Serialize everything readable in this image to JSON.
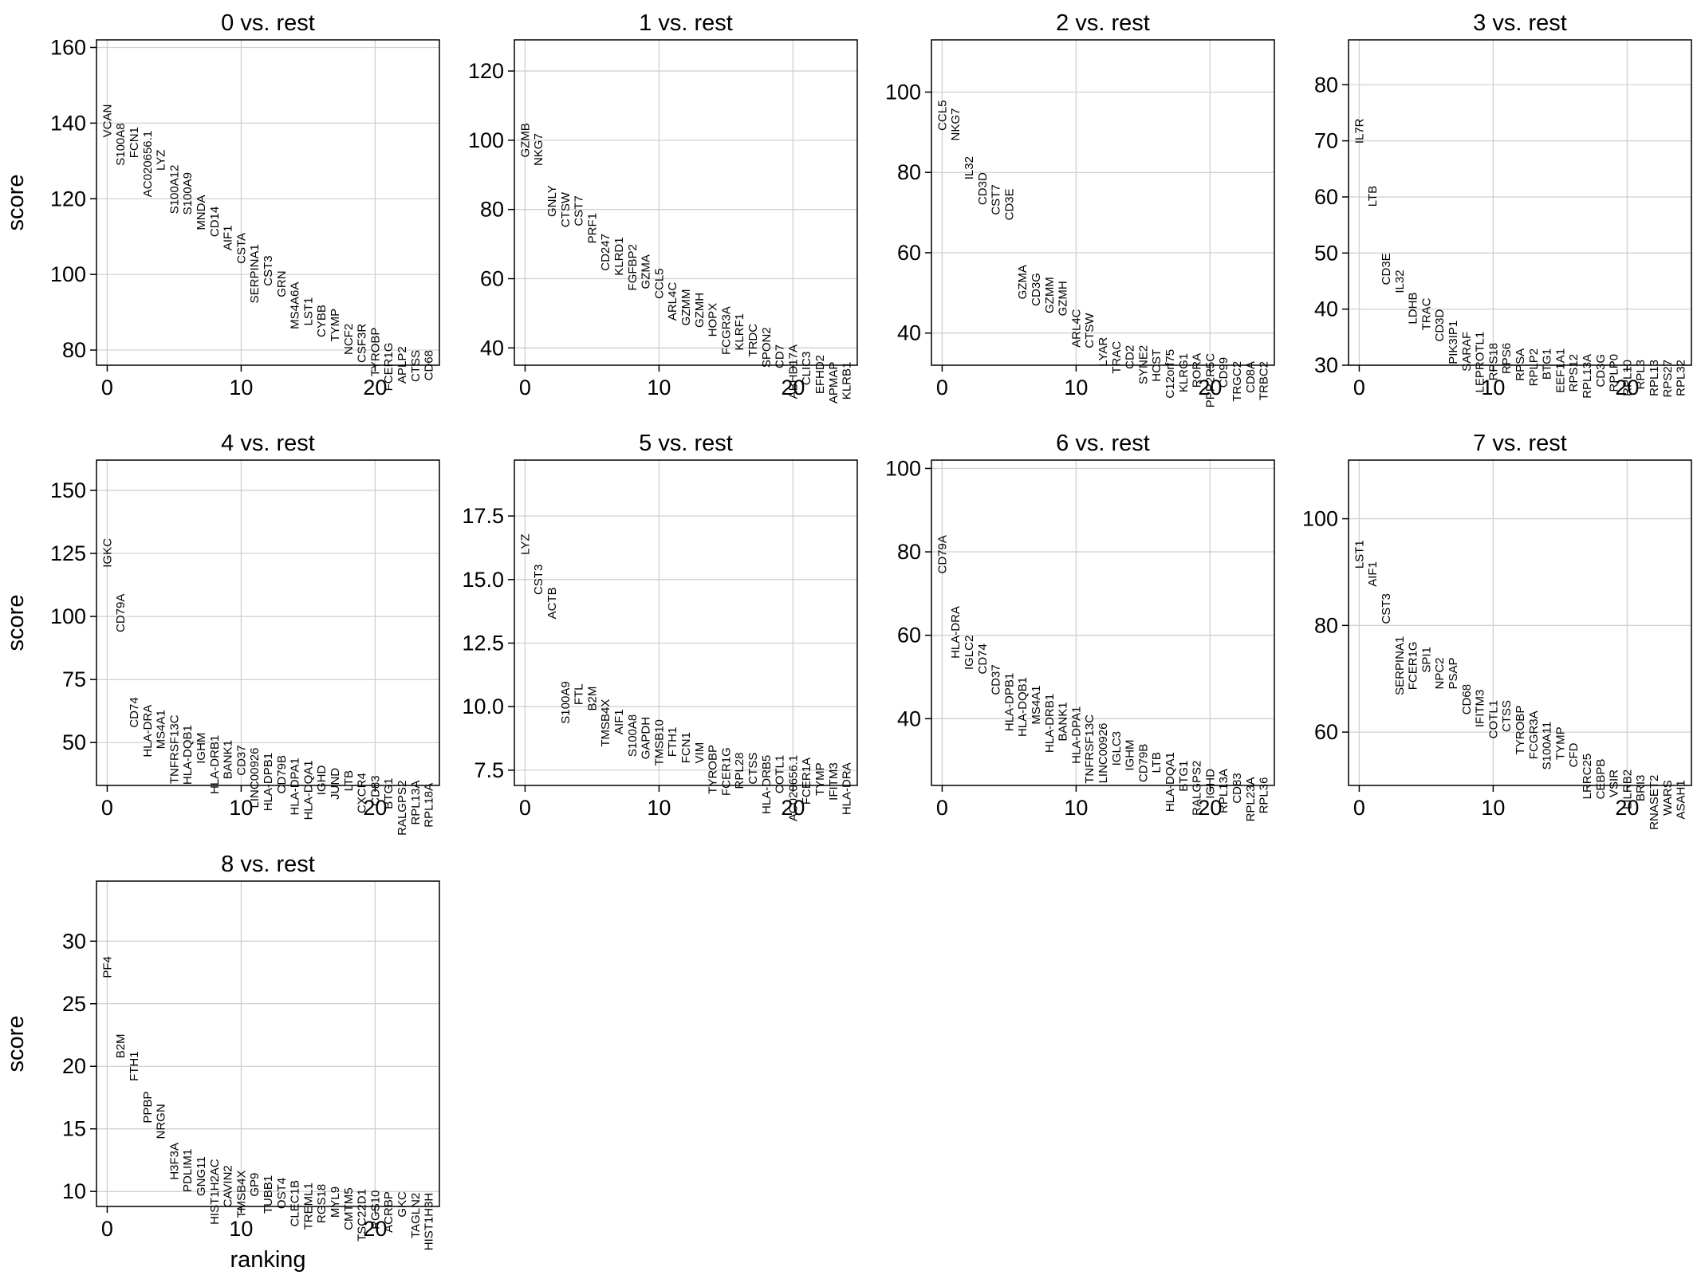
{
  "chart_data": [
    {
      "type": "scatter",
      "title": "0 vs. rest",
      "ylabel": "score",
      "xlabel": "",
      "xlim": [
        -0.8,
        24.8
      ],
      "ylim": [
        76,
        162
      ],
      "xticks": [
        "0",
        "10",
        "20"
      ],
      "yticks": [
        "80",
        "100",
        "120",
        "140",
        "160"
      ],
      "grid": true,
      "genes": [
        "VCAN",
        "S100A8",
        "FCN1",
        "AC020656.1",
        "LYZ",
        "S100A12",
        "S100A9",
        "MNDA",
        "CD14",
        "AIF1",
        "CSTA",
        "SERPINA1",
        "CST3",
        "GRN",
        "MS4A6A",
        "LST1",
        "CYBB",
        "TYMP",
        "NCF2",
        "CSF3R",
        "TYROBP",
        "FCER1G",
        "APLP2",
        "CTSS",
        "CD68"
      ],
      "scores": [
        145,
        140,
        139,
        138,
        133,
        129,
        127,
        121,
        118,
        113,
        111,
        108,
        105,
        101,
        98,
        94,
        92,
        91,
        87,
        87,
        86,
        82,
        81,
        80,
        80
      ]
    },
    {
      "type": "scatter",
      "title": "1 vs. rest",
      "ylabel": "",
      "xlabel": "",
      "xlim": [
        -0.8,
        24.8
      ],
      "ylim": [
        35,
        129
      ],
      "xticks": [
        "0",
        "10",
        "20"
      ],
      "yticks": [
        "40",
        "60",
        "80",
        "100",
        "120"
      ],
      "grid": true,
      "genes": [
        "GZMB",
        "NKG7",
        "GNLY",
        "CTSW",
        "CST7",
        "PRF1",
        "CD247",
        "KLRD1",
        "FGFBP2",
        "GZMA",
        "CCL5",
        "ARL4C",
        "GZMM",
        "GZMH",
        "HOPX",
        "FCGR3A",
        "KLRF1",
        "TRDC",
        "SPON2",
        "CD7",
        "ABHD17A",
        "CLIC3",
        "EFHD2",
        "APMAP",
        "KLRB1"
      ],
      "scores": [
        105,
        102,
        87,
        85,
        84,
        79,
        73,
        72,
        70,
        67,
        63,
        59,
        57,
        56,
        53,
        52,
        50,
        47,
        46,
        41,
        41,
        39,
        38,
        36,
        36
      ]
    },
    {
      "type": "scatter",
      "title": "2 vs. rest",
      "ylabel": "",
      "xlabel": "",
      "xlim": [
        -0.8,
        24.8
      ],
      "ylim": [
        32,
        113
      ],
      "xticks": [
        "0",
        "10",
        "20"
      ],
      "yticks": [
        "40",
        "60",
        "80",
        "100"
      ],
      "grid": true,
      "genes": [
        "CCL5",
        "NKG7",
        "IL32",
        "CD3D",
        "CST7",
        "CD3E",
        "GZMA",
        "CD3G",
        "GZMM",
        "GZMH",
        "ARL4C",
        "CTSW",
        "LYAR",
        "TRAC",
        "CD2",
        "SYNE2",
        "HCST",
        "C12orf75",
        "KLRG1",
        "RORA",
        "PPP2R5C",
        "CD99",
        "TRGC2",
        "CD8A",
        "TRBC2"
      ],
      "scores": [
        98,
        96,
        84,
        80,
        77,
        76,
        57,
        55,
        54,
        53,
        46,
        45,
        39,
        38,
        37,
        37,
        36,
        36,
        35,
        35,
        35,
        34,
        33,
        33,
        33
      ]
    },
    {
      "type": "scatter",
      "title": "3 vs. rest",
      "ylabel": "",
      "xlabel": "",
      "xlim": [
        -0.8,
        24.8
      ],
      "ylim": [
        30,
        88
      ],
      "xticks": [
        "0",
        "10",
        "20"
      ],
      "yticks": [
        "30",
        "40",
        "50",
        "60",
        "70",
        "80"
      ],
      "grid": true,
      "genes": [
        "IL7R",
        "LTB",
        "CD3E",
        "IL32",
        "LDHB",
        "TRAC",
        "CD3D",
        "PIK3IP1",
        "SARAF",
        "LEPROTL1",
        "RPS18",
        "RPS6",
        "RPSA",
        "RPLP2",
        "BTG1",
        "EEF1A1",
        "RPS12",
        "RPL13A",
        "CD3G",
        "RPLP0",
        "RPL10",
        "RPL3",
        "RPL13",
        "RPS27",
        "RPL32"
      ],
      "scores": [
        74,
        62,
        50,
        47,
        43,
        42,
        40,
        38,
        36,
        36,
        34,
        34,
        33,
        33,
        33,
        33,
        32,
        32,
        32,
        32,
        31,
        31,
        31,
        31,
        31
      ]
    },
    {
      "type": "scatter",
      "title": "4 vs. rest",
      "ylabel": "score",
      "xlabel": "",
      "xlim": [
        -0.8,
        24.8
      ],
      "ylim": [
        33,
        162
      ],
      "xticks": [
        "0",
        "10",
        "20"
      ],
      "yticks": [
        "50",
        "75",
        "100",
        "125",
        "150"
      ],
      "grid": true,
      "genes": [
        "IGKC",
        "CD79A",
        "CD74",
        "HLA-DRA",
        "MS4A1",
        "TNFRSF13C",
        "HLA-DQB1",
        "IGHM",
        "HLA-DRB1",
        "BANK1",
        "CD37",
        "LINC00926",
        "HLA-DPB1",
        "CD79B",
        "HLA-DPA1",
        "HLA-DQA1",
        "IGHD",
        "JUND",
        "LTB",
        "CXCR4",
        "CD83",
        "BTG1",
        "RALGPS2",
        "RPL13A",
        "RPL18A"
      ],
      "scores": [
        131,
        109,
        68,
        65,
        63,
        61,
        57,
        54,
        53,
        51,
        49,
        48,
        46,
        45,
        44,
        43,
        41,
        40,
        39,
        38,
        37,
        36,
        35,
        35,
        34
      ]
    },
    {
      "type": "scatter",
      "title": "5 vs. rest",
      "ylabel": "",
      "xlabel": "",
      "xlim": [
        -0.8,
        24.8
      ],
      "ylim": [
        6.9,
        19.7
      ],
      "xticks": [
        "0",
        "10",
        "20"
      ],
      "yticks": [
        "7.5",
        "10.0",
        "12.5",
        "15.0",
        "17.5"
      ],
      "grid": true,
      "genes": [
        "LYZ",
        "CST3",
        "ACTB",
        "S100A9",
        "FTL",
        "B2M",
        "TMSB4X",
        "AIF1",
        "S100A8",
        "GAPDH",
        "TMSB10",
        "FTH1",
        "FCN1",
        "VIM",
        "TYROBP",
        "FCER1G",
        "RPL28",
        "CTSS",
        "HLA-DRB5",
        "COTL1",
        "AC020656.1",
        "FCER1A",
        "TYMP",
        "IFITM3",
        "HLA-DRA"
      ],
      "scores": [
        16.8,
        15.6,
        14.7,
        11.0,
        10.9,
        10.8,
        10.3,
        9.9,
        9.7,
        9.6,
        9.5,
        9.2,
        9.0,
        8.6,
        8.5,
        8.4,
        8.2,
        8.2,
        8.1,
        8.1,
        8.1,
        8.0,
        7.8,
        7.8,
        7.8
      ]
    },
    {
      "type": "scatter",
      "title": "6 vs. rest",
      "ylabel": "",
      "xlabel": "",
      "xlim": [
        -0.8,
        24.8
      ],
      "ylim": [
        24,
        102
      ],
      "xticks": [
        "0",
        "10",
        "20"
      ],
      "yticks": [
        "40",
        "60",
        "80",
        "100"
      ],
      "grid": true,
      "genes": [
        "CD79A",
        "HLA-DRA",
        "IGLC2",
        "CD74",
        "CD37",
        "HLA-DPB1",
        "HLA-DQB1",
        "MS4A1",
        "HLA-DRB1",
        "BANK1",
        "HLA-DPA1",
        "TNFRSF13C",
        "LINC00926",
        "IGLC3",
        "IGHM",
        "CD79B",
        "LTB",
        "HLA-DQA1",
        "BTG1",
        "RALGPS2",
        "IGHD",
        "RPL13A",
        "CD83",
        "RPL23A",
        "RPL36"
      ],
      "scores": [
        84,
        67,
        60,
        58,
        53,
        51,
        50,
        48,
        46,
        44,
        43,
        41,
        39,
        37,
        35,
        34,
        32,
        32,
        30,
        30,
        28,
        28,
        27,
        26,
        26
      ]
    },
    {
      "type": "scatter",
      "title": "7 vs. rest",
      "ylabel": "",
      "xlabel": "",
      "xlim": [
        -0.8,
        24.8
      ],
      "ylim": [
        50,
        111
      ],
      "xticks": [
        "0",
        "10",
        "20"
      ],
      "yticks": [
        "60",
        "80",
        "100"
      ],
      "grid": true,
      "genes": [
        "LST1",
        "AIF1",
        "CST3",
        "SERPINA1",
        "FCER1G",
        "SPI1",
        "NPC2",
        "PSAP",
        "CD68",
        "IFITM3",
        "COTL1",
        "CTSS",
        "TYROBP",
        "FCGR3A",
        "S100A11",
        "TYMP",
        "CFD",
        "LRRC25",
        "CEBPB",
        "VSIR",
        "LILRB2",
        "BRI3",
        "RNASET2",
        "WARS",
        "ASAH1"
      ],
      "scores": [
        96,
        92,
        86,
        78,
        77,
        76,
        74,
        74,
        69,
        68,
        66,
        66,
        65,
        64,
        62,
        61,
        58,
        56,
        55,
        53,
        53,
        52,
        52,
        51,
        51
      ]
    },
    {
      "type": "scatter",
      "title": "8 vs. rest",
      "ylabel": "score",
      "xlabel": "ranking",
      "xlim": [
        -0.8,
        24.8
      ],
      "ylim": [
        8.8,
        34.8
      ],
      "xticks": [
        "0",
        "10",
        "20"
      ],
      "yticks": [
        "10",
        "15",
        "20",
        "25",
        "30"
      ],
      "grid": true,
      "genes": [
        "PF4",
        "B2M",
        "FTH1",
        "PPBP",
        "NRGN",
        "H3F3A",
        "PDLIM1",
        "GNG11",
        "HIST1H2AC",
        "CAVIN2",
        "TMSB4X",
        "GP9",
        "TUBB1",
        "OST4",
        "CLEC1B",
        "TREML1",
        "RGS18",
        "MYL9",
        "CMTM5",
        "TSC22D1",
        "RGS10",
        "ACRBP",
        "GKC",
        "TAGLN2",
        "HIST1H3H"
      ],
      "scores": [
        28.8,
        22.6,
        21.2,
        18.0,
        17.0,
        13.9,
        13.4,
        12.8,
        12.6,
        12.1,
        11.7,
        11.5,
        11.3,
        11.1,
        10.9,
        10.7,
        10.6,
        10.4,
        10.3,
        10.2,
        10.1,
        10.0,
        10.0,
        9.9,
        9.9
      ]
    }
  ]
}
